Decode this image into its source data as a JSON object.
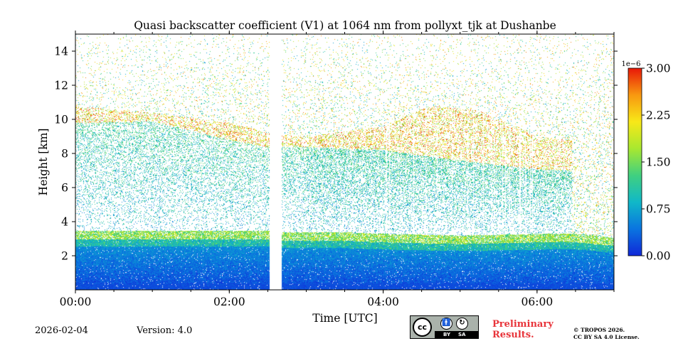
{
  "chart_data": {
    "type": "heatmap",
    "title": "Quasi backscatter coefficient (V1) at 1064 nm from pollyxt_tjk at Dushanbe",
    "xlabel": "Time [UTC]",
    "ylabel": "Height [km]",
    "xlim_hours": [
      0,
      7
    ],
    "ylim_km": [
      0,
      15
    ],
    "x_ticks": [
      {
        "value": 0,
        "label": "00:00"
      },
      {
        "value": 2,
        "label": "02:00"
      },
      {
        "value": 4,
        "label": "04:00"
      },
      {
        "value": 6,
        "label": "06:00"
      }
    ],
    "y_ticks": [
      {
        "value": 2,
        "label": "2"
      },
      {
        "value": 4,
        "label": "4"
      },
      {
        "value": 6,
        "label": "6"
      },
      {
        "value": 8,
        "label": "8"
      },
      {
        "value": 10,
        "label": "10"
      },
      {
        "value": 12,
        "label": "12"
      },
      {
        "value": 14,
        "label": "14"
      }
    ],
    "colorbar": {
      "min": 0.0,
      "max": 3.0,
      "scale_label": "1e−6",
      "ticks": [
        {
          "value": 0.0,
          "label": "0.00"
        },
        {
          "value": 0.75,
          "label": "0.75"
        },
        {
          "value": 1.5,
          "label": "1.50"
        },
        {
          "value": 2.25,
          "label": "2.25"
        },
        {
          "value": 3.0,
          "label": "3.00"
        }
      ],
      "colormap": [
        "#1028d8",
        "#0a74e0",
        "#10b8c8",
        "#40d080",
        "#a8e830",
        "#f8e818",
        "#f89810",
        "#e81808"
      ]
    },
    "data_gaps_hours": [
      [
        2.52,
        2.68
      ]
    ],
    "layers": {
      "boundary_layer_top_km": [
        {
          "t": 0.0,
          "h": 3.0
        },
        {
          "t": 2.5,
          "h": 3.0
        },
        {
          "t": 2.7,
          "h": 2.9
        },
        {
          "t": 3.5,
          "h": 2.9
        },
        {
          "t": 4.0,
          "h": 2.8
        },
        {
          "t": 5.0,
          "h": 2.7
        },
        {
          "t": 6.0,
          "h": 2.8
        },
        {
          "t": 6.5,
          "h": 2.8
        },
        {
          "t": 7.0,
          "h": 2.6
        }
      ],
      "cirrus_base_km": [
        {
          "t": 0.0,
          "h": 9.8
        },
        {
          "t": 1.0,
          "h": 9.9
        },
        {
          "t": 2.0,
          "h": 8.8
        },
        {
          "t": 2.5,
          "h": 8.4
        },
        {
          "t": 3.0,
          "h": 8.4
        },
        {
          "t": 4.0,
          "h": 8.2
        },
        {
          "t": 5.0,
          "h": 7.6
        },
        {
          "t": 6.0,
          "h": 7.1
        },
        {
          "t": 6.4,
          "h": 7.0
        }
      ],
      "cirrus_top_km": [
        {
          "t": 0.0,
          "h": 10.8
        },
        {
          "t": 1.0,
          "h": 10.4
        },
        {
          "t": 2.0,
          "h": 9.8
        },
        {
          "t": 2.5,
          "h": 9.2
        },
        {
          "t": 3.0,
          "h": 9.0
        },
        {
          "t": 4.0,
          "h": 9.6
        },
        {
          "t": 4.6,
          "h": 10.8
        },
        {
          "t": 5.2,
          "h": 10.6
        },
        {
          "t": 6.0,
          "h": 9.0
        },
        {
          "t": 6.4,
          "h": 8.8
        }
      ]
    }
  },
  "footer": {
    "date": "2026-02-04",
    "version": "Version: 4.0",
    "preliminary_line1": "Preliminary",
    "preliminary_line2": "Results.",
    "copyright_line1": "© TROPOS 2026.",
    "copyright_line2": "CC BY SA 4.0 License.",
    "license_badge": {
      "cc": "cc",
      "by": "BY",
      "sa": "SA",
      "icon_by": "attribution-icon",
      "icon_sa": "share-alike-icon"
    }
  }
}
